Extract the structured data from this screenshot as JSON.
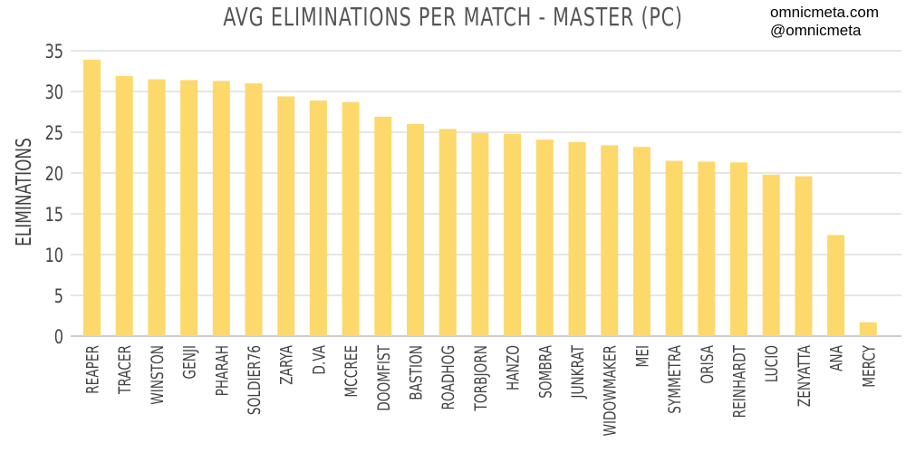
{
  "header": {
    "title": "AVG ELIMINATIONS PER MATCH - MASTER (PC)"
  },
  "watermark": {
    "line1": "omnicmeta.com",
    "line2": "@omnicmeta"
  },
  "colors": {
    "bar": "#fdd86b",
    "grid": "#cccccc",
    "axis": "#999999",
    "text": "#444444"
  },
  "chart_data": {
    "type": "bar",
    "title": "AVG ELIMINATIONS PER MATCH - MASTER (PC)",
    "xlabel": "",
    "ylabel": "ELIMINATIONS",
    "ylim": [
      0,
      35
    ],
    "yticks": [
      0,
      5,
      10,
      15,
      20,
      25,
      30,
      35
    ],
    "grid": true,
    "legend": "none",
    "categories": [
      "REAPER",
      "TRACER",
      "WINSTON",
      "GENJI",
      "PHARAH",
      "SOLDIER76",
      "ZARYA",
      "D.VA",
      "MCCREE",
      "DOOMFIST",
      "BASTION",
      "ROADHOG",
      "TORBJORN",
      "HANZO",
      "SOMBRA",
      "JUNKRAT",
      "WIDOWMAKER",
      "MEI",
      "SYMMETRA",
      "ORISA",
      "REINHARDT",
      "LUCIO",
      "ZENYATTA",
      "ANA",
      "MERCY"
    ],
    "values": [
      33.9,
      31.9,
      31.5,
      31.4,
      31.3,
      31.0,
      29.4,
      28.9,
      28.7,
      26.9,
      26.0,
      25.4,
      24.9,
      24.8,
      24.1,
      23.8,
      23.4,
      23.2,
      21.5,
      21.4,
      21.3,
      19.8,
      19.6,
      12.4,
      1.7
    ]
  }
}
